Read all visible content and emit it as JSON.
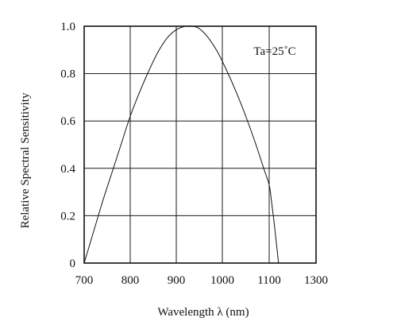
{
  "chart_data": {
    "type": "line",
    "xlabel": "Wavelength λ (nm)",
    "ylabel": "Relative Spectral Sensitivity",
    "annotation": "Ta=25˚C",
    "xlim": [
      700,
      1300
    ],
    "ylim": [
      0,
      1.0
    ],
    "x_ticks": [
      700,
      800,
      900,
      1000,
      1100,
      1300
    ],
    "x_tick_labels": [
      "700",
      "800",
      "900",
      "1000",
      "1100",
      "1300"
    ],
    "x_grid": [
      800,
      900,
      1000,
      1100
    ],
    "y_ticks": [
      0,
      0.2,
      0.4,
      0.6,
      0.8,
      1.0
    ],
    "y_tick_labels": [
      "0",
      "0.2",
      "0.4",
      "0.6",
      "0.8",
      "1.0"
    ],
    "grid": true,
    "series": [
      {
        "x": [
          700,
          720,
          740,
          760,
          780,
          800,
          820,
          840,
          860,
          880,
          900,
          920,
          935,
          950,
          970,
          990,
          1010,
          1030,
          1050,
          1070,
          1090,
          1100,
          1110,
          1120,
          1130,
          1140
        ],
        "y": [
          0.0,
          0.13,
          0.26,
          0.38,
          0.5,
          0.62,
          0.72,
          0.81,
          0.89,
          0.95,
          0.985,
          1.0,
          1.0,
          0.99,
          0.95,
          0.89,
          0.81,
          0.72,
          0.62,
          0.51,
          0.39,
          0.33,
          0.26,
          0.18,
          0.09,
          0.0
        ]
      }
    ]
  }
}
